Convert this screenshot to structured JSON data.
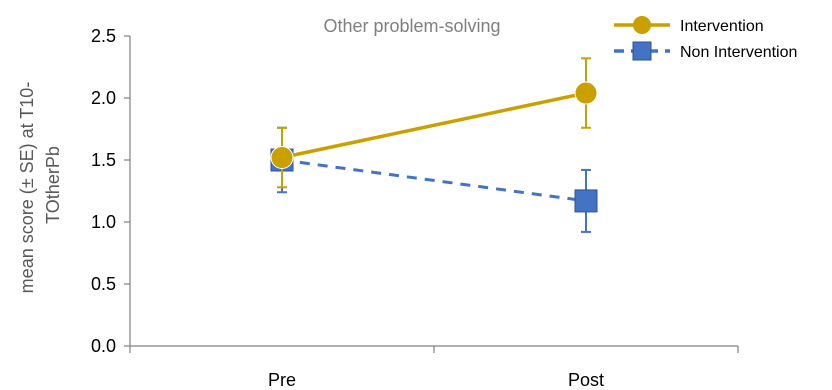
{
  "chart_data": {
    "type": "line",
    "title": "Other problem-solving",
    "xlabel": "",
    "ylabel_lines": [
      "mean score (± SE) at T10-",
      "TOtherPb"
    ],
    "categories": [
      "Pre",
      "Post"
    ],
    "ylim": [
      0,
      2.5
    ],
    "yticks": [
      0.0,
      0.5,
      1.0,
      1.5,
      2.0,
      2.5
    ],
    "ytick_labels": [
      "0.0",
      "0.5",
      "1.0",
      "1.5",
      "2.0",
      "2.5"
    ],
    "grid": false,
    "legend_position": "top-right",
    "series": [
      {
        "name": "Intervention",
        "values": [
          1.52,
          2.04
        ],
        "error": [
          0.24,
          0.28
        ],
        "color": "#C9A000",
        "marker": "circle",
        "line_style": "solid"
      },
      {
        "name": "Non Intervention",
        "values": [
          1.5,
          1.17
        ],
        "error": [
          0.26,
          0.25
        ],
        "color": "#4472C4",
        "marker": "square",
        "line_style": "dashed"
      }
    ]
  }
}
